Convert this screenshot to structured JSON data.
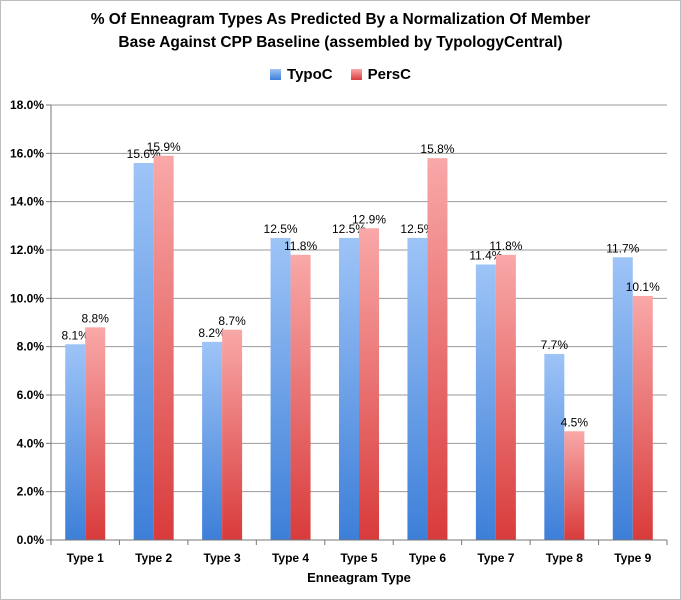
{
  "chart_data": {
    "type": "bar",
    "title_line1": "% Of Enneagram Types As Predicted By a Normalization Of Member",
    "title_line2": "Base Against CPP Baseline (assembled by TypologyCentral)",
    "xlabel": "Enneagram Type",
    "ylabel": "",
    "categories": [
      "Type 1",
      "Type 2",
      "Type 3",
      "Type 4",
      "Type 5",
      "Type 6",
      "Type 7",
      "Type 8",
      "Type 9"
    ],
    "series": [
      {
        "name": "TypoC",
        "values": [
          8.1,
          15.6,
          8.2,
          12.5,
          12.5,
          12.5,
          11.4,
          7.7,
          11.7
        ],
        "labels": [
          "8.1%",
          "15.6%",
          "8.2%",
          "12.5%",
          "12.5%",
          "12.5%",
          "11.4%",
          "7.7%",
          "11.7%"
        ],
        "color_top": "#9ec4f7",
        "color_bottom": "#3d7fd8"
      },
      {
        "name": "PersC",
        "values": [
          8.8,
          15.9,
          8.7,
          11.8,
          12.9,
          15.8,
          11.8,
          4.5,
          10.1
        ],
        "labels": [
          "8.8%",
          "15.9%",
          "8.7%",
          "11.8%",
          "12.9%",
          "15.8%",
          "11.8%",
          "4.5%",
          "10.1%"
        ],
        "color_top": "#f9a8a8",
        "color_bottom": "#d93b3b"
      }
    ],
    "ylim": [
      0,
      18
    ],
    "yticks": [
      0,
      2,
      4,
      6,
      8,
      10,
      12,
      14,
      16,
      18
    ],
    "ytick_labels": [
      "0.0%",
      "2.0%",
      "4.0%",
      "6.0%",
      "8.0%",
      "10.0%",
      "12.0%",
      "14.0%",
      "16.0%",
      "18.0%"
    ],
    "grid": true,
    "legend_position": "top-center"
  }
}
